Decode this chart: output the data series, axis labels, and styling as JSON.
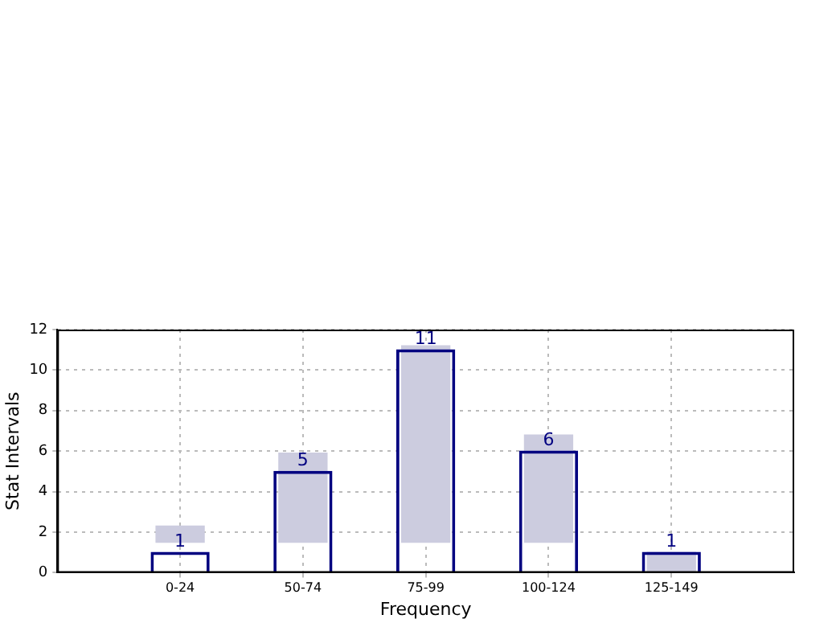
{
  "chart_data": {
    "type": "bar",
    "xlabel": "Frequency",
    "ylabel": "Stat Intervals",
    "categories": [
      "0-24",
      "50-74",
      "75-99",
      "100-124",
      "125-149"
    ],
    "series": [
      {
        "values": [
          0.8,
          4.4,
          9.7,
          5.3,
          1
        ],
        "base": [
          1.5,
          1.5,
          1.5,
          1.5,
          0
        ],
        "color": "#ccccdf"
      },
      {
        "values": [
          1,
          5,
          11,
          6,
          1
        ],
        "color": "#000080",
        "value_labels": [
          "1",
          "5",
          "11",
          "6",
          "1"
        ]
      }
    ],
    "ylim": [
      0,
      12
    ],
    "yticks": [
      0,
      2,
      4,
      6,
      8,
      10,
      12
    ],
    "grid": true,
    "legend": false
  }
}
